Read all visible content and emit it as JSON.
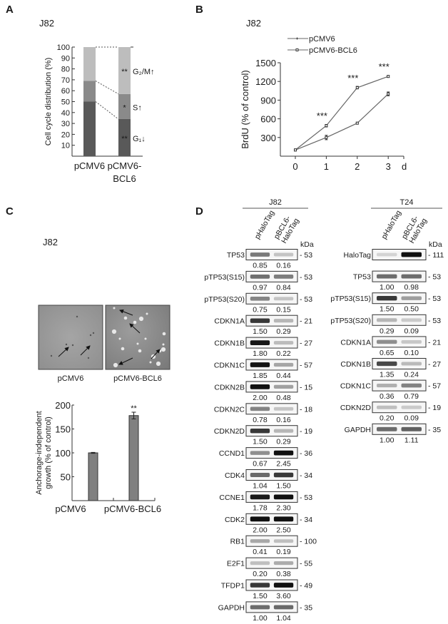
{
  "figure": {
    "panels": {
      "a": "A",
      "b": "B",
      "c": "C",
      "d": "D"
    },
    "cell_line_j82": "J82",
    "cell_line_t24": "T24"
  },
  "chart_data": [
    {
      "panel": "A",
      "type": "bar",
      "stacked": true,
      "title": "J82",
      "ylabel": "Cell cycle distribution (%)",
      "ylim": [
        0,
        100
      ],
      "yticks": [
        10,
        20,
        30,
        40,
        50,
        60,
        70,
        80,
        90,
        100
      ],
      "categories": [
        "pCMV6",
        "pCMV6-\nBCL6"
      ],
      "series": [
        {
          "name": "G1",
          "label": "G₁↓",
          "sig": "**",
          "values": [
            50,
            34
          ],
          "color": "#595959"
        },
        {
          "name": "S",
          "label": "S↑",
          "sig": "*",
          "values": [
            19,
            23
          ],
          "color": "#8a8a8a"
        },
        {
          "name": "G2/M",
          "label": "G₂/M↑",
          "sig": "**",
          "values": [
            31,
            43
          ],
          "color": "#bdbdbd"
        }
      ]
    },
    {
      "panel": "B",
      "type": "line",
      "title": "J82",
      "ylabel": "BrdU (% of control)",
      "xlabel": "d",
      "x": [
        0,
        1,
        2,
        3
      ],
      "ylim": [
        0,
        1500
      ],
      "yticks": [
        300,
        600,
        900,
        1200,
        1500
      ],
      "series": [
        {
          "name": "pCMV6",
          "marker": "plus",
          "values": [
            100,
            300,
            530,
            1000
          ],
          "errors": [
            10,
            35,
            15,
            30
          ]
        },
        {
          "name": "pCMV6-BCL6",
          "marker": "square",
          "values": [
            100,
            490,
            1100,
            1280
          ],
          "errors": [
            10,
            20,
            20,
            15
          ]
        }
      ],
      "significance": [
        "",
        "***",
        "***",
        "***"
      ],
      "legend": "top-left"
    },
    {
      "panel": "C",
      "type": "bar",
      "ylabel": "Anchorage-independent\ngrowth  (% of control)",
      "ylim": [
        0,
        200
      ],
      "yticks": [
        50,
        100,
        150,
        200
      ],
      "categories": [
        "pCMV6",
        "pCMV6-BCL6"
      ],
      "values": [
        100,
        178
      ],
      "errors": [
        1,
        7
      ],
      "significance": [
        "",
        "**"
      ],
      "color": "#808080"
    }
  ],
  "panel_c": {
    "title": "J82",
    "images": [
      {
        "label": "pCMV6"
      },
      {
        "label": "pCMV6-BCL6"
      }
    ]
  },
  "panel_d": {
    "kda_label": "kDa",
    "j82": {
      "lanes": [
        "pHaloTag",
        "pBCL6-\nHaloTag"
      ],
      "rows": [
        {
          "label": "TP53",
          "kda": "53",
          "values": [
            "0.85",
            "0.16"
          ]
        },
        {
          "label": "pTP53(S15)",
          "kda": "53",
          "values": [
            "0.97",
            "0.84"
          ]
        },
        {
          "label": "pTP53(S20)",
          "kda": "53",
          "values": [
            "0.75",
            "0.15"
          ]
        },
        {
          "label": "CDKN1A",
          "kda": "21",
          "values": [
            "1.50",
            "0.29"
          ]
        },
        {
          "label": "CDKN1B",
          "kda": "27",
          "values": [
            "1.80",
            "0.22"
          ]
        },
        {
          "label": "CDKN1C",
          "kda": "57",
          "values": [
            "1.85",
            "0.44"
          ]
        },
        {
          "label": "CDKN2B",
          "kda": "15",
          "values": [
            "2.00",
            "0.48"
          ]
        },
        {
          "label": "CDKN2C",
          "kda": "18",
          "values": [
            "0.78",
            "0.16"
          ]
        },
        {
          "label": "CDKN2D",
          "kda": "19",
          "values": [
            "1.50",
            "0.29"
          ]
        },
        {
          "label": "CCND1",
          "kda": "36",
          "values": [
            "0.67",
            "2.45"
          ]
        },
        {
          "label": "CDK4",
          "kda": "34",
          "values": [
            "1.04",
            "1.50"
          ]
        },
        {
          "label": "CCNE1",
          "kda": "53",
          "values": [
            "1.78",
            "2.30"
          ]
        },
        {
          "label": "CDK2",
          "kda": "34",
          "values": [
            "2.00",
            "2.50"
          ]
        },
        {
          "label": "RB1",
          "kda": "100",
          "values": [
            "0.41",
            "0.19"
          ]
        },
        {
          "label": "E2F1",
          "kda": "55",
          "values": [
            "0.20",
            "0.38"
          ]
        },
        {
          "label": "TFDP1",
          "kda": "49",
          "values": [
            "1.50",
            "3.60"
          ]
        },
        {
          "label": "GAPDH",
          "kda": "35",
          "values": [
            "1.00",
            "1.04"
          ]
        }
      ]
    },
    "t24": {
      "lanes": [
        "pHaloTag",
        "pBCL6-\nHaloTag"
      ],
      "rows": [
        {
          "label": "HaloTag",
          "kda": "111",
          "values": []
        },
        {
          "label": "TP53",
          "kda": "53",
          "values": [
            "1.00",
            "0.98"
          ]
        },
        {
          "label": "pTP53(S15)",
          "kda": "53",
          "values": [
            "1.50",
            "0.50"
          ]
        },
        {
          "label": "pTP53(S20)",
          "kda": "53",
          "values": [
            "0.29",
            "0.09"
          ]
        },
        {
          "label": "CDKN1A",
          "kda": "21",
          "values": [
            "0.65",
            "0.10"
          ]
        },
        {
          "label": "CDKN1B",
          "kda": "27",
          "values": [
            "1.35",
            "0.24"
          ]
        },
        {
          "label": "CDKN1C",
          "kda": "57",
          "values": [
            "0.36",
            "0.79"
          ]
        },
        {
          "label": "CDKN2D",
          "kda": "19",
          "values": [
            "0.20",
            "0.09"
          ]
        },
        {
          "label": "GAPDH",
          "kda": "35",
          "values": [
            "1.00",
            "1.11"
          ]
        }
      ]
    }
  }
}
